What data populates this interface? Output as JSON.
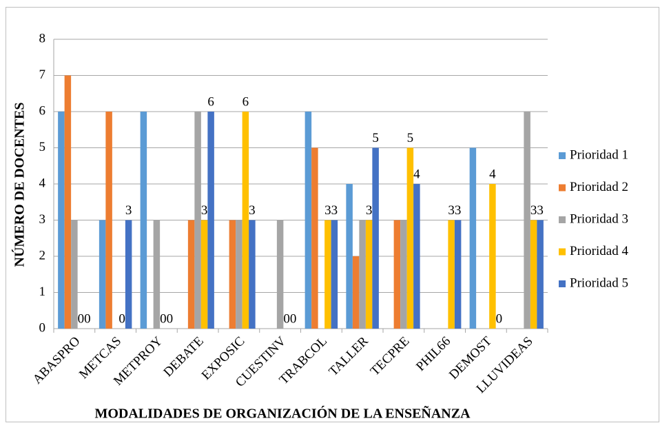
{
  "chart_data": {
    "type": "bar",
    "x_label": "MODALIDADES DE ORGANIZACIÓN DE LA ENSEÑANZA",
    "y_label": "NÚMERO DE DOCENTES",
    "categories": [
      "ABASPRO",
      "METCAS",
      "METPROY",
      "DEBATE",
      "EXPOSIC",
      "CUESTINV",
      "TRABCOL",
      "TALLER",
      "TECPRE",
      "PHIL66",
      "DEMOST",
      "LLUVIDEAS"
    ],
    "series": [
      {
        "name": "Prioridad 1",
        "color": "#5b9bd5",
        "values": [
          6,
          3,
          6,
          0,
          0,
          0,
          6,
          4,
          0,
          0,
          5,
          0
        ],
        "show_value_labels": false
      },
      {
        "name": "Prioridad 2",
        "color": "#ed7d31",
        "values": [
          7,
          6,
          0,
          3,
          3,
          0,
          5,
          2,
          3,
          0,
          0,
          0
        ],
        "show_value_labels": false
      },
      {
        "name": "Prioridad 3",
        "color": "#a5a5a5",
        "values": [
          3,
          0,
          3,
          6,
          3,
          3,
          0,
          3,
          3,
          0,
          0,
          6
        ],
        "show_value_labels": false
      },
      {
        "name": "Prioridad 4",
        "color": "#ffc000",
        "values": [
          0,
          0,
          0,
          3,
          6,
          0,
          3,
          3,
          5,
          3,
          4,
          3
        ],
        "show_value_labels": true
      },
      {
        "name": "Prioridad 5",
        "color": "#4472c4",
        "values": [
          0,
          3,
          0,
          6,
          3,
          0,
          3,
          5,
          4,
          3,
          0,
          3
        ],
        "show_value_labels": true
      }
    ],
    "ylim": [
      0,
      8
    ],
    "yticks": [
      0,
      1,
      2,
      3,
      4,
      5,
      6,
      7,
      8
    ],
    "grid": true,
    "legend": "right"
  }
}
